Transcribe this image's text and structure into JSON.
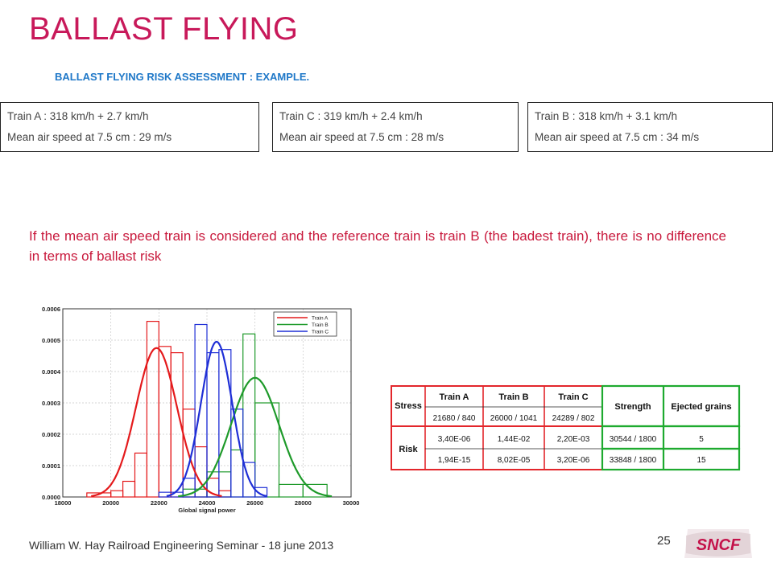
{
  "slide": {
    "title": "BALLAST FLYING",
    "subtitle": "BALLAST FLYING RISK ASSESSMENT  : EXAMPLE."
  },
  "trains": [
    {
      "line1": "Train A : 318  km/h + 2.7 km/h",
      "line2": "Mean air speed at 7.5 cm : 29 m/s"
    },
    {
      "line1": "Train C : 319  km/h + 2.4 km/h",
      "line2": "Mean air speed at 7.5 cm : 28 m/s"
    },
    {
      "line1": "Train B : 318  km/h + 3.1 km/h",
      "line2": "Mean air speed at 7.5 cm : 34 m/s"
    }
  ],
  "statement": "If the mean air speed train is considered and the reference train is train B (the badest train), there is no difference in terms of ballast risk",
  "chart_data": {
    "type": "histogram",
    "xlabel": "Global signal power",
    "xlim": [
      18000,
      30000
    ],
    "ylim": [
      0,
      0.0006
    ],
    "xticks": [
      "18000",
      "20000",
      "22000",
      "24000",
      "26000",
      "28000",
      "30000"
    ],
    "yticks": [
      "0.0000",
      "0.0001",
      "0.0002",
      "0.0003",
      "0.0004",
      "0.0005",
      "0.0006"
    ],
    "legend_position": "top-right",
    "series": [
      {
        "name": "Train A",
        "color": "#e41a1c",
        "bins": [
          [
            19000,
            20000,
            1.3e-05
          ],
          [
            20000,
            20500,
            2e-05
          ],
          [
            20500,
            21000,
            5e-05
          ],
          [
            21000,
            21500,
            0.00014
          ],
          [
            21500,
            22000,
            0.00056
          ],
          [
            22000,
            22500,
            0.00048
          ],
          [
            22500,
            23000,
            0.00046
          ],
          [
            23000,
            23500,
            0.00028
          ],
          [
            23500,
            24000,
            0.00016
          ],
          [
            24000,
            24500,
            6e-05
          ],
          [
            24500,
            25000,
            2e-05
          ]
        ],
        "curve": {
          "mean": 21900,
          "sd": 850,
          "peak": 0.000475
        }
      },
      {
        "name": "Train B",
        "color": "#1e9a2a",
        "bins": [
          [
            23000,
            24000,
            2.5e-05
          ],
          [
            24000,
            25000,
            8e-05
          ],
          [
            25000,
            25500,
            0.00015
          ],
          [
            25500,
            26000,
            0.00052
          ],
          [
            26000,
            27000,
            0.0003
          ],
          [
            27000,
            28000,
            4e-05
          ],
          [
            28000,
            29000,
            4e-05
          ]
        ],
        "curve": {
          "mean": 26000,
          "sd": 1000,
          "peak": 0.00038
        }
      },
      {
        "name": "Train C",
        "color": "#1f2fd6",
        "bins": [
          [
            22000,
            23000,
            1.5e-05
          ],
          [
            23000,
            23500,
            6e-05
          ],
          [
            23500,
            24000,
            0.00055
          ],
          [
            24000,
            24500,
            0.00046
          ],
          [
            24500,
            25000,
            0.00047
          ],
          [
            25000,
            25500,
            0.00028
          ],
          [
            25500,
            26000,
            0.00011
          ],
          [
            26000,
            26500,
            3e-05
          ]
        ],
        "curve": {
          "mean": 24400,
          "sd": 650,
          "peak": 0.000495
        }
      }
    ]
  },
  "risk_table": {
    "headers": {
      "stress": "Stress",
      "train_a": "Train A",
      "train_b": "Train B",
      "train_c": "Train C",
      "strength": "Strength",
      "ejected": "Ejected grains"
    },
    "stress_values": [
      "21680 / 840",
      "26000 / 1041",
      "24289 / 802"
    ],
    "risk_label": "Risk",
    "rows": [
      {
        "a": "3,40E-06",
        "b": "1,44E-02",
        "c": "2,20E-03",
        "strength": "30544 / 1800",
        "ejected": "5"
      },
      {
        "a": "1,94E-15",
        "b": "8,02E-05",
        "c": "3,20E-06",
        "strength": "33848 / 1800",
        "ejected": "15"
      }
    ],
    "border_red": "#e3262b",
    "border_green": "#1eaa2f"
  },
  "footer": {
    "text": "William W. Hay Railroad Engineering Seminar - 18 june 2013",
    "page_number": "25",
    "logo": "SNCF"
  },
  "colors": {
    "title": "#c8195a",
    "subtitle": "#1f78c8",
    "statement": "#c8193c",
    "logo": "#c4124a"
  }
}
